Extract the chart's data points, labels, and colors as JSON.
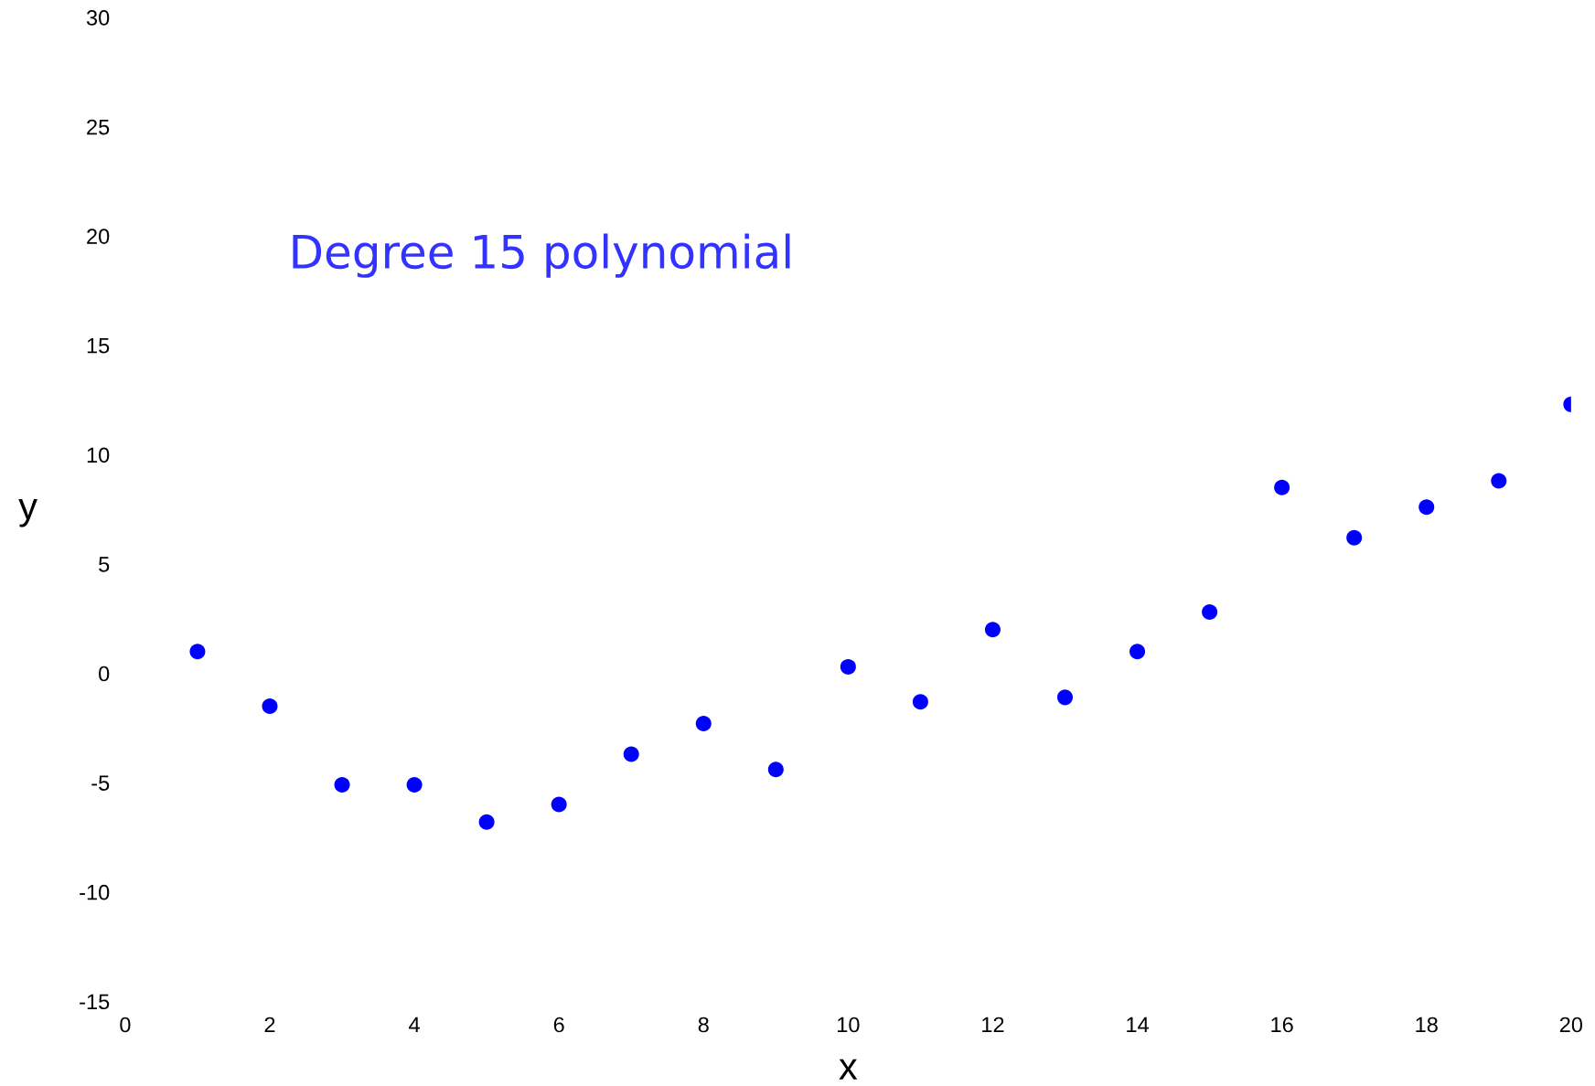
{
  "chart_data": {
    "type": "scatter",
    "xlabel": "x",
    "ylabel": "y",
    "annotations": [
      "Degree 15 polynomial"
    ],
    "x": [
      1,
      2,
      3,
      4,
      5,
      6,
      7,
      8,
      9,
      10,
      11,
      12,
      13,
      14,
      15,
      16,
      17,
      18,
      19,
      20
    ],
    "series": [
      {
        "color": "#0000ff",
        "values": [
          1.0,
          -1.5,
          -5.1,
          -5.1,
          -6.8,
          -6.0,
          -3.7,
          -2.3,
          -4.4,
          0.3,
          -1.3,
          2.0,
          -1.1,
          1.0,
          2.8,
          8.5,
          6.2,
          7.6,
          8.8,
          12.3
        ]
      }
    ],
    "xlim": [
      0,
      20
    ],
    "xticks": [
      0,
      2,
      4,
      6,
      8,
      10,
      12,
      14,
      16,
      18,
      20
    ],
    "ylim": [
      -15,
      30
    ],
    "yticks": [
      -15,
      -10,
      -5,
      0,
      5,
      10,
      15,
      20,
      25,
      30
    ],
    "marker": "circle",
    "grid": false
  }
}
